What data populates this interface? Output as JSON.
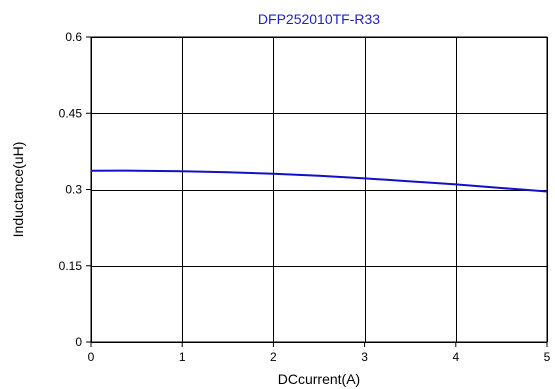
{
  "chart_data": {
    "type": "line",
    "title": "DFP252010TF-R33",
    "xlabel": "DCcurrent(A)",
    "ylabel": "Inductance(uH)",
    "xlim": [
      0,
      5
    ],
    "ylim": [
      0,
      0.6
    ],
    "x_ticks": [
      0,
      1,
      2,
      3,
      4,
      5
    ],
    "y_ticks": [
      0,
      0.15,
      0.3,
      0.45,
      0.6
    ],
    "x_tick_labels": [
      "0",
      "1",
      "2",
      "3",
      "4",
      "5"
    ],
    "y_tick_labels": [
      "0",
      "0.15",
      "0.3",
      "0.45",
      "0.6"
    ],
    "grid": true,
    "colors": {
      "title": "#2020cc",
      "line": "#1010cc",
      "grid": "#000000"
    },
    "series": [
      {
        "x": [
          0,
          0.5,
          1,
          1.5,
          2,
          2.5,
          3,
          3.5,
          4,
          4.5,
          5
        ],
        "y": [
          0.337,
          0.337,
          0.336,
          0.334,
          0.331,
          0.327,
          0.322,
          0.316,
          0.31,
          0.303,
          0.296
        ]
      }
    ]
  }
}
